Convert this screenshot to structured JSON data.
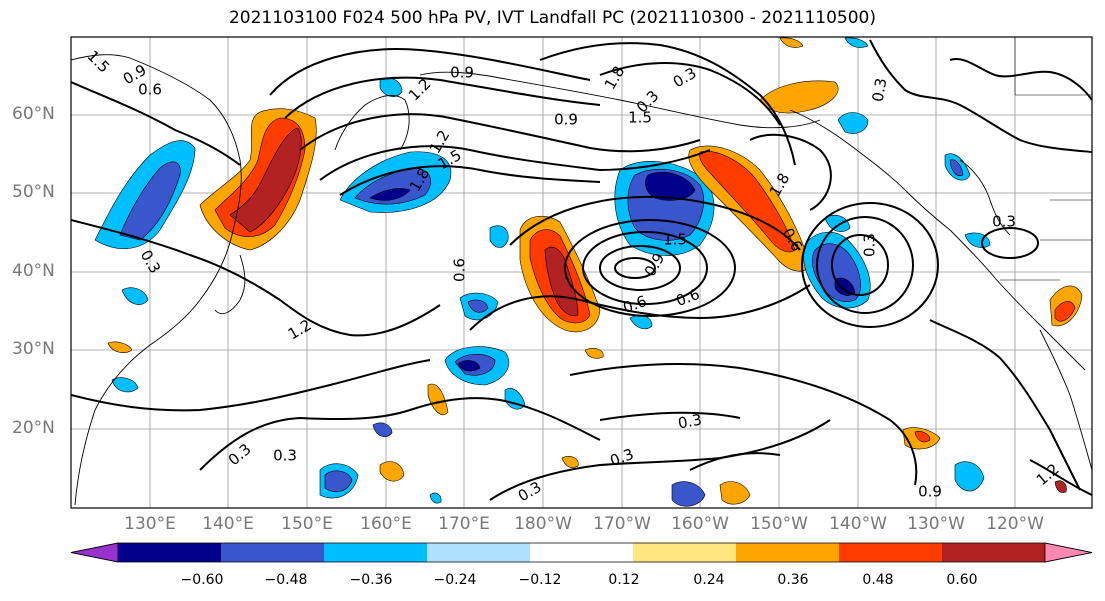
{
  "title": "2021103100 F024 500 hPa PV, IVT Landfall PC (2021110300 - 2021110500)",
  "axes": {
    "lat_labels": [
      "60°N",
      "50°N",
      "40°N",
      "30°N",
      "20°N"
    ],
    "lon_labels": [
      "130°E",
      "140°E",
      "150°E",
      "160°E",
      "170°E",
      "180°W",
      "170°W",
      "160°W",
      "150°W",
      "140°W",
      "130°W",
      "120°W"
    ]
  },
  "contour_labels": [
    "1.5",
    "0.9",
    "0.6",
    "1.2",
    "0.9",
    "1.2",
    "1.5",
    "1.8",
    "0.9",
    "1.8",
    "1.5",
    "0.3",
    "0.3",
    "0.6",
    "1.2",
    "1.5",
    "0.9",
    "0.6",
    "0.6",
    "1.8",
    "0.6",
    "0.3",
    "0.3",
    "0.3",
    "0.3",
    "0.3",
    "0.3",
    "0.3",
    "0.3",
    "0.9",
    "1.2",
    "0.3"
  ],
  "colorbar": {
    "ticks": [
      "−0.60",
      "−0.48",
      "−0.36",
      "−0.24",
      "−0.12",
      "0.12",
      "0.24",
      "0.36",
      "0.48",
      "0.60"
    ],
    "colors": [
      "#9932cc",
      "#00008b",
      "#3a56cc",
      "#00bfff",
      "#b0e2ff",
      "#ffffff",
      "#ffe680",
      "#ffa500",
      "#ff3c00",
      "#b22222",
      "#ff88b0"
    ]
  }
}
